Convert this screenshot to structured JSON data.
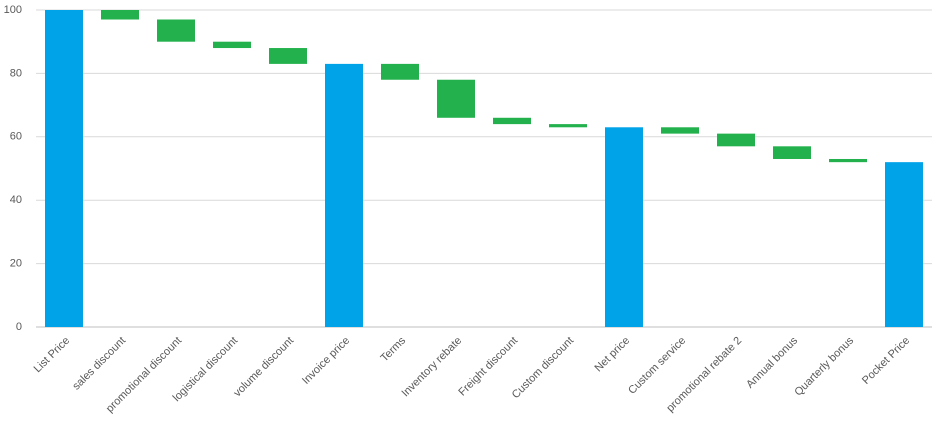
{
  "chart_data": {
    "type": "waterfall",
    "categories": [
      "List Price",
      "sales discount",
      "promotional discount",
      "logistical discount",
      "volume discount",
      "Invoice price",
      "Terms",
      "Inventory rebate",
      "Freight discount",
      "Custom discount",
      "Net price",
      "Custom service",
      "promotional rebate 2",
      "Annual bonus",
      "Quarterly bonus",
      "Pocket Price"
    ],
    "values": [
      100,
      -3,
      -7,
      -2,
      -5,
      83,
      -5,
      -12,
      -2,
      -1,
      63,
      -2,
      -4,
      -4,
      -1,
      52
    ],
    "colors": [
      "#00a2e8",
      "#22b14c",
      "#22b14c",
      "#22b14c",
      "#22b14c",
      "#00a2e8",
      "#22b14c",
      "#22b14c",
      "#22b14c",
      "#22b14c",
      "#00a2e8",
      "#22b14c",
      "#22b14c",
      "#22b14c",
      "#22b14c",
      "#00a2e8"
    ],
    "ylim": [
      0,
      100
    ],
    "yticks": [
      0,
      20,
      40,
      60,
      80,
      100
    ],
    "grid": true
  }
}
